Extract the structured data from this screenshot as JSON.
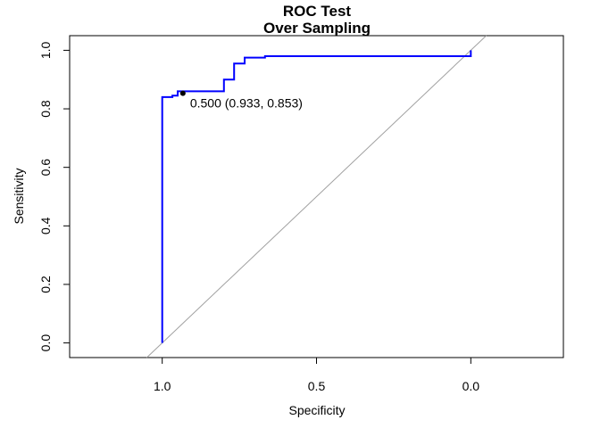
{
  "chart_data": {
    "type": "line",
    "title": "ROC Test",
    "subtitle": "Over Sampling",
    "xlabel": "Specificity",
    "ylabel": "Sensitivity",
    "x_reversed": true,
    "xlim": [
      1.3,
      -0.3
    ],
    "ylim": [
      -0.05,
      1.05
    ],
    "x_ticks": [
      1.0,
      0.5,
      0.0
    ],
    "x_tick_labels": [
      "1.0",
      "0.5",
      "0.0"
    ],
    "y_ticks": [
      0.0,
      0.2,
      0.4,
      0.6,
      0.8,
      1.0
    ],
    "y_tick_labels": [
      "0.0",
      "0.2",
      "0.4",
      "0.6",
      "0.8",
      "1.0"
    ],
    "grid": false,
    "series": [
      {
        "color": "#0000ff",
        "x": [
          1.0,
          1.0,
          0.967,
          0.967,
          0.95,
          0.95,
          0.8,
          0.8,
          0.767,
          0.767,
          0.733,
          0.733,
          0.667,
          0.667,
          0.0,
          0.0
        ],
        "y": [
          0.0,
          0.84,
          0.84,
          0.845,
          0.845,
          0.86,
          0.86,
          0.9,
          0.9,
          0.955,
          0.955,
          0.975,
          0.975,
          0.98,
          0.98,
          1.0
        ]
      }
    ],
    "reference_line": {
      "color": "#a0a0a0",
      "from": [
        1.0,
        0.0
      ],
      "to": [
        0.0,
        1.0
      ]
    },
    "threshold_point": {
      "x": 0.933,
      "y": 0.853,
      "label": "0.500 (0.933, 0.853)"
    }
  }
}
